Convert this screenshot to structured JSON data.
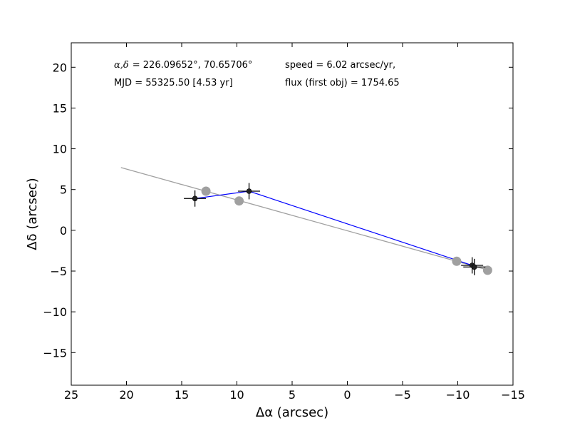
{
  "chart_data": {
    "type": "scatter",
    "xlabel": "Δα (arcsec)",
    "ylabel": "Δδ (arcsec)",
    "xlim": [
      25,
      -15
    ],
    "ylim": [
      -19,
      23
    ],
    "x_ticks": [
      25,
      20,
      15,
      10,
      5,
      0,
      -5,
      -10,
      -15
    ],
    "y_ticks": [
      -15,
      -10,
      -5,
      0,
      5,
      10,
      15,
      20
    ],
    "x_tick_labels": [
      "25",
      "20",
      "15",
      "10",
      "5",
      "0",
      "−5",
      "−10",
      "−15"
    ],
    "y_tick_labels": [
      "−15",
      "−10",
      "−5",
      "0",
      "5",
      "10",
      "15",
      "20"
    ],
    "annotations": {
      "coord_prefix": "α,δ",
      "coord_values": "= 226.09652°, 70.65706°",
      "speed": "speed = 6.02 arcsec/yr,",
      "mjd": "MJD = 55325.50 [4.53 yr]",
      "flux": "flux (first obj) = 1754.65"
    },
    "series": [
      {
        "role": "fit",
        "color": "#a0a0a0",
        "style": "line",
        "x": [
          20.5,
          -12.8
        ],
        "y": [
          7.7,
          -4.9
        ]
      },
      {
        "role": "predicted",
        "color": "#a0a0a0",
        "style": "markers",
        "x": [
          12.8,
          9.8,
          -9.9,
          -12.7
        ],
        "y": [
          4.8,
          3.6,
          -3.8,
          -4.9
        ]
      },
      {
        "role": "observed",
        "color": "#0000ff",
        "marker_color": "#222222",
        "style": "line+markers+errorbars",
        "x": [
          13.8,
          8.9,
          -11.3,
          -11.5
        ],
        "y": [
          3.9,
          4.8,
          -4.3,
          -4.5
        ],
        "xerr": [
          1.0,
          1.0,
          1.0,
          1.0
        ],
        "yerr": [
          1.0,
          1.0,
          1.0,
          1.0
        ]
      }
    ]
  }
}
